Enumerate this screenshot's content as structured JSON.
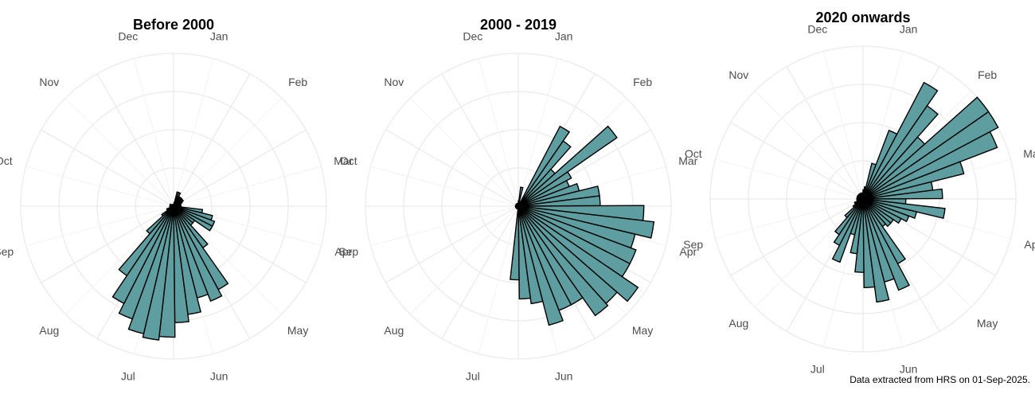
{
  "caption": "Data extracted from HRS on 01-Sep-2025.",
  "chart_data": [
    {
      "type": "polar-bar",
      "title": "Before 2000",
      "months": [
        "Jan",
        "Feb",
        "Mar",
        "Apr",
        "May",
        "Jun",
        "Jul",
        "Aug",
        "Sep",
        "Oct",
        "Nov",
        "Dec"
      ],
      "bin_width_days": 7,
      "rmax": 42,
      "values": [
        0.5,
        1,
        4,
        4,
        3,
        3,
        3,
        3,
        3,
        2.5,
        2,
        2,
        2,
        2,
        8,
        11,
        12,
        12,
        7,
        7,
        14,
        26,
        28,
        26,
        30,
        32,
        36,
        37,
        36,
        33,
        30,
        23,
        10,
        4,
        2,
        2,
        1,
        1,
        1,
        1,
        1,
        1,
        1,
        1,
        0.5,
        0.5,
        0.5,
        0.5,
        0.5,
        0.5,
        0.5,
        0.5
      ]
    },
    {
      "type": "polar-bar",
      "title": "2000 - 2019",
      "months": [
        "Jan",
        "Feb",
        "Mar",
        "Apr",
        "May",
        "Jun",
        "Jul",
        "Aug",
        "Sep",
        "Oct",
        "Nov",
        "Dec"
      ],
      "bin_width_days": 7,
      "rmax": 56,
      "values": [
        2,
        7,
        1,
        1,
        33,
        29,
        18,
        44,
        22,
        20,
        23,
        30,
        30,
        46,
        50,
        44,
        46,
        46,
        53,
        48,
        49,
        41,
        41,
        45,
        36,
        34,
        27,
        1,
        1,
        1,
        1,
        1,
        1,
        1,
        1,
        1,
        1,
        1,
        1,
        1,
        1,
        1,
        1,
        1,
        1,
        1,
        1,
        1,
        1,
        1,
        1,
        1
      ]
    },
    {
      "type": "polar-bar",
      "title": "2020 onwards",
      "months": [
        "Jan",
        "Feb",
        "Mar",
        "Apr",
        "May",
        "Jun",
        "Jul",
        "Aug",
        "Sep",
        "Oct",
        "Nov",
        "Dec"
      ],
      "bin_width_days": 7,
      "rmax": 5.0,
      "values": [
        0.3,
        0.4,
        1.2,
        2.4,
        4.3,
        3.7,
        2.7,
        5.0,
        5.0,
        4.7,
        3.4,
        2.3,
        2.6,
        1.4,
        2.7,
        1.8,
        1.6,
        1.4,
        1.2,
        1.2,
        1.1,
        2.4,
        3.2,
        2.8,
        3.4,
        2.9,
        2.4,
        1.8,
        1.2,
        2.2,
        1.7,
        1.4,
        0.8,
        0.4,
        0.2,
        0.3,
        0.2,
        0.2,
        0.2,
        0.2,
        0.2,
        0.2,
        0.2,
        0.2,
        0.2,
        0.2,
        0.2,
        0.2,
        0.2,
        0.2,
        0.2,
        0.2
      ]
    }
  ]
}
